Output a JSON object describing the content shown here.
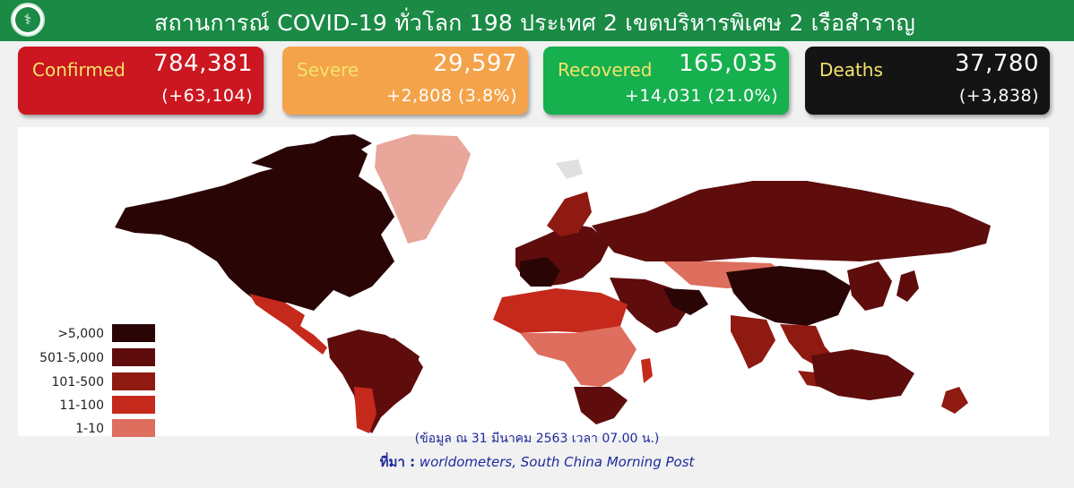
{
  "header": {
    "title": "สถานการณ์ COVID-19 ทั่วโลก 198 ประเทศ 2 เขตบริหารพิเศษ 2 เรือสำราญ",
    "logo_icon": "ministry-logo-icon",
    "background": "#1a8a45"
  },
  "stats": {
    "confirmed": {
      "label": "Confirmed",
      "value": "784,381",
      "change": "(+63,104)",
      "color": "#cc1620"
    },
    "severe": {
      "label": "Severe",
      "value": "29,597",
      "change": "+2,808 (3.8%)",
      "color": "#f4a34a"
    },
    "recovered": {
      "label": "Recovered",
      "value": "165,035",
      "change": "+14,031 (21.0%)",
      "color": "#17b04e"
    },
    "deaths": {
      "label": "Deaths",
      "value": "37,780",
      "change": "(+3,838)",
      "color": "#141414"
    }
  },
  "map": {
    "legend": [
      {
        "label": ">5,000",
        "color": "#2a0506"
      },
      {
        "label": "501-5,000",
        "color": "#5e0c0c"
      },
      {
        "label": "101-500",
        "color": "#8e1a12"
      },
      {
        "label": "11-100",
        "color": "#c5291b"
      },
      {
        "label": "1-10",
        "color": "#de6e5e"
      }
    ]
  },
  "footnote": "(ข้อมูล ณ 31 มีนาคม 2563 เวลา 07.00 น.)",
  "source": {
    "label": "ที่มา :",
    "text": "worldometers,  South China Morning Post"
  }
}
